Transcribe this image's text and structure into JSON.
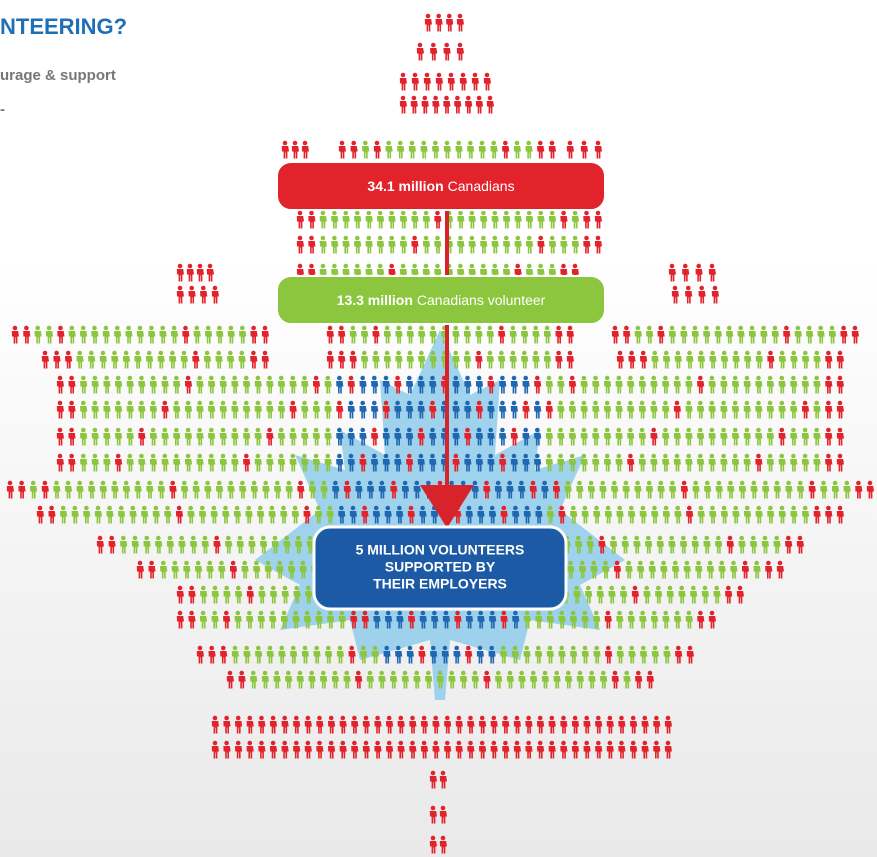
{
  "header": {
    "title": "NTEERING?",
    "subtitle": "urage & support",
    "mark": "-"
  },
  "boxes": [
    {
      "number": "34.1 million",
      "text": "Canadians"
    },
    {
      "number": "13.3 million",
      "text": "Canadians volunteer"
    }
  ],
  "result": {
    "lines": [
      "5 MILLION VOLUNTEERS",
      "SUPPORTED BY",
      "THEIR EMPLOYERS"
    ]
  }
}
